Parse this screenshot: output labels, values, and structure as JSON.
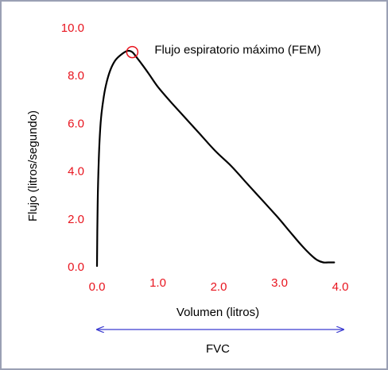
{
  "chart_data": {
    "type": "line",
    "title": "",
    "xlabel": "Volumen (litros)",
    "ylabel": "Flujo (litros/segundo)",
    "xlim": [
      0,
      4
    ],
    "ylim": [
      0,
      10
    ],
    "x_ticks": [
      "0.0",
      "1.0",
      "2.0",
      "3.0",
      "4.0"
    ],
    "y_ticks": [
      "0.0",
      "2.0",
      "4.0",
      "6.0",
      "8.0",
      "10.0"
    ],
    "grid": false,
    "tick_color": "#e8141e",
    "line_color": "#000000",
    "series": [
      {
        "x": [
          0.0,
          0.01,
          0.03,
          0.06,
          0.1,
          0.15,
          0.22,
          0.3,
          0.4,
          0.5,
          0.58,
          0.66,
          0.75,
          0.85,
          1.0,
          1.2,
          1.45,
          1.7,
          1.95,
          2.2,
          2.45,
          2.7,
          2.95,
          3.15,
          3.35,
          3.5,
          3.62,
          3.72,
          3.8,
          3.9
        ],
        "y": [
          0.0,
          2.5,
          4.5,
          6.0,
          6.9,
          7.6,
          8.2,
          8.6,
          8.85,
          9.0,
          8.95,
          8.7,
          8.4,
          8.05,
          7.5,
          6.9,
          6.2,
          5.5,
          4.8,
          4.2,
          3.5,
          2.8,
          2.1,
          1.5,
          0.9,
          0.5,
          0.25,
          0.15,
          0.15,
          0.15
        ]
      }
    ],
    "annotations": [
      {
        "text": "Flujo espiratorio máximo (FEM)",
        "x": 0.58,
        "y": 8.95,
        "marker": "circle",
        "marker_color": "#e8141e"
      },
      {
        "text": "FVC",
        "x_range": [
          0,
          4
        ],
        "type": "double-arrow",
        "color": "#3a3ad0"
      }
    ]
  }
}
